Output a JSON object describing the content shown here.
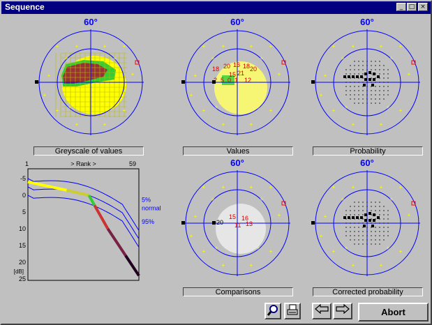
{
  "window": {
    "title": "Sequence",
    "controls": [
      "_",
      "□",
      "×"
    ]
  },
  "fields": [
    {
      "id": "f1",
      "deg": "60°",
      "label": "Greyscale of values"
    },
    {
      "id": "f2",
      "deg": "60°",
      "label": "Values"
    },
    {
      "id": "f3",
      "deg": "60°",
      "label": "Probability"
    },
    {
      "id": "f4",
      "deg": "60°",
      "label": "Comparisons"
    },
    {
      "id": "f5",
      "deg": "60°",
      "label": "Corrected probability"
    }
  ],
  "values_numbers": [
    "18",
    "20",
    "16",
    "18",
    "20",
    "15",
    "21",
    "2",
    "5",
    "0",
    "1",
    "12"
  ],
  "comparisons_numbers": [
    "20",
    "15",
    "11",
    "16",
    "13"
  ],
  "rank_chart": {
    "start": "1",
    "title": "> Rank >",
    "end": "59",
    "y_ticks": [
      "-5",
      "0",
      "5",
      "10",
      "15",
      "20",
      "25"
    ],
    "unit": "[dB]",
    "curve_labels": [
      "5%",
      "normal",
      "95%"
    ]
  },
  "buttons": {
    "abort": "Abort"
  },
  "colors": {
    "window": "#c0c0c0",
    "title": "#000080",
    "plot_line": "#0000ff",
    "yellow": "#ffff00",
    "green": "#33cc33",
    "red": "#cc0000"
  }
}
